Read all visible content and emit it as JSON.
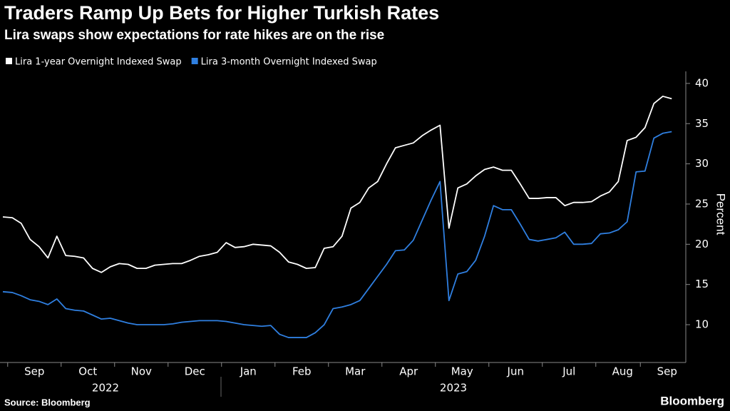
{
  "chart_data": {
    "type": "line",
    "title": "Traders Ramp Up Bets for Higher Turkish Rates",
    "subtitle": "Lira swaps show expectations for rate hikes are on the rise",
    "categories": [
      null,
      null,
      null,
      "Sep",
      null,
      null,
      null,
      null,
      null,
      "Oct",
      null,
      null,
      null,
      null,
      null,
      "Nov",
      null,
      null,
      null,
      null,
      null,
      "Dec",
      null,
      null,
      null,
      null,
      null,
      "Jan",
      null,
      null,
      null,
      null,
      null,
      "Feb",
      null,
      null,
      null,
      null,
      null,
      "Mar",
      null,
      null,
      null,
      null,
      null,
      "Apr",
      null,
      null,
      null,
      null,
      null,
      "May",
      null,
      null,
      null,
      null,
      null,
      "Jun",
      null,
      null,
      null,
      null,
      null,
      "Jul",
      null,
      null,
      null,
      null,
      null,
      "Aug",
      null,
      null,
      null,
      null,
      "Sep",
      null
    ],
    "years": [
      "2022",
      "2023"
    ],
    "series": [
      {
        "name": "Lira 1-year Overnight Indexed Swap",
        "color": "#ffffff",
        "values": [
          23.4,
          23.3,
          22.6,
          20.6,
          19.7,
          18.3,
          21.0,
          18.6,
          18.5,
          18.3,
          17.0,
          16.5,
          17.2,
          17.6,
          17.5,
          17.0,
          17.0,
          17.4,
          17.5,
          17.6,
          17.6,
          18.0,
          18.5,
          18.7,
          19.0,
          20.2,
          19.6,
          19.7,
          20.0,
          19.9,
          19.8,
          19.0,
          17.8,
          17.5,
          17.0,
          17.1,
          19.5,
          19.7,
          21.0,
          24.5,
          25.2,
          27.0,
          27.8,
          30.0,
          32.0,
          32.3,
          32.6,
          33.5,
          34.2,
          34.8,
          22.0,
          27.0,
          27.5,
          28.5,
          29.3,
          29.6,
          29.2,
          29.2,
          27.5,
          25.7,
          25.7,
          25.8,
          25.8,
          24.8,
          25.2,
          25.2,
          25.3,
          26.0,
          26.5,
          27.8,
          32.9,
          33.3,
          34.5,
          37.5,
          38.4,
          38.1
        ]
      },
      {
        "name": "Lira 3-month Overnight Indexed Swap",
        "color": "#2f7fe0",
        "values": [
          14.1,
          14.0,
          13.6,
          13.1,
          12.9,
          12.5,
          13.2,
          12.0,
          11.8,
          11.7,
          11.2,
          10.7,
          10.8,
          10.5,
          10.2,
          10.0,
          10.0,
          10.0,
          10.0,
          10.1,
          10.3,
          10.4,
          10.5,
          10.5,
          10.5,
          10.4,
          10.2,
          10.0,
          9.9,
          9.8,
          9.9,
          8.8,
          8.4,
          8.4,
          8.4,
          9.0,
          10.0,
          12.0,
          12.2,
          12.5,
          13.0,
          14.5,
          16.0,
          17.5,
          19.2,
          19.3,
          20.5,
          23.0,
          25.5,
          27.8,
          13.0,
          16.3,
          16.6,
          18.0,
          21.0,
          24.8,
          24.3,
          24.3,
          22.5,
          20.6,
          20.4,
          20.6,
          20.8,
          21.5,
          20.0,
          20.0,
          20.1,
          21.3,
          21.4,
          21.8,
          22.8,
          29.0,
          29.1,
          33.2,
          33.8,
          34.0
        ]
      }
    ],
    "y_label": "Percent",
    "ylim": [
      5.3,
      41.5
    ],
    "yticks": [
      10,
      15,
      20,
      25,
      30,
      35,
      40
    ],
    "grid": false,
    "source": "Source: Bloomberg",
    "brand": "Bloomberg"
  }
}
